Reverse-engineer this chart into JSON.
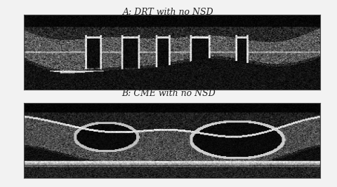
{
  "title_a": "A: DRT with no NSD",
  "title_b": "B: CME with no NSD",
  "bg_color": "#f2f2f2",
  "title_fontsize": 9,
  "title_style": "italic"
}
